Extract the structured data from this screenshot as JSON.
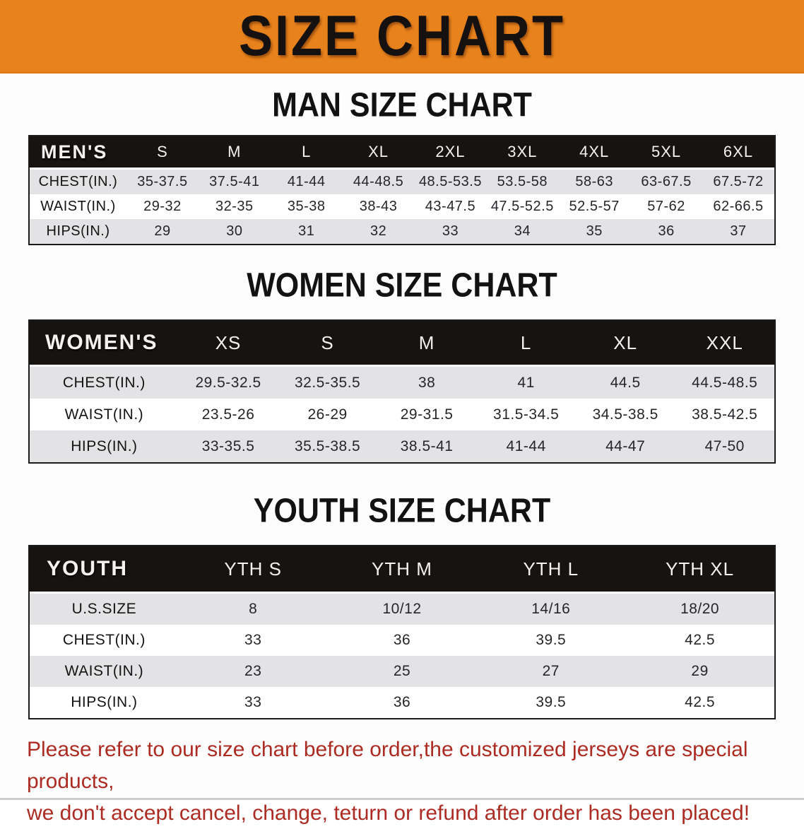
{
  "banner": {
    "title": "SIZE CHART",
    "background_color": "#E8821C",
    "text_color": "#141110"
  },
  "sections": [
    {
      "key": "mens",
      "title": "MAN SIZE CHART",
      "header_label": "MEN'S",
      "columns": [
        "S",
        "M",
        "L",
        "XL",
        "2XL",
        "3XL",
        "4XL",
        "5XL",
        "6XL"
      ],
      "rows": [
        {
          "label": "CHEST(IN.)",
          "values": [
            "35-37.5",
            "37.5-41",
            "41-44",
            "44-48.5",
            "48.5-53.5",
            "53.5-58",
            "58-63",
            "63-67.5",
            "67.5-72"
          ]
        },
        {
          "label": "WAIST(IN.)",
          "values": [
            "29-32",
            "32-35",
            "35-38",
            "38-43",
            "43-47.5",
            "47.5-52.5",
            "52.5-57",
            "57-62",
            "62-66.5"
          ]
        },
        {
          "label": "HIPS(IN.)",
          "values": [
            "29",
            "30",
            "31",
            "32",
            "33",
            "34",
            "35",
            "36",
            "37"
          ]
        }
      ]
    },
    {
      "key": "womens",
      "title": "WOMEN SIZE CHART",
      "header_label": "WOMEN'S",
      "columns": [
        "XS",
        "S",
        "M",
        "L",
        "XL",
        "XXL"
      ],
      "rows": [
        {
          "label": "CHEST(IN.)",
          "values": [
            "29.5-32.5",
            "32.5-35.5",
            "38",
            "41",
            "44.5",
            "44.5-48.5"
          ]
        },
        {
          "label": "WAIST(IN.)",
          "values": [
            "23.5-26",
            "26-29",
            "29-31.5",
            "31.5-34.5",
            "34.5-38.5",
            "38.5-42.5"
          ]
        },
        {
          "label": "HIPS(IN.)",
          "values": [
            "33-35.5",
            "35.5-38.5",
            "38.5-41",
            "41-44",
            "44-47",
            "47-50"
          ]
        }
      ]
    },
    {
      "key": "youth",
      "title": "YOUTH SIZE CHART",
      "header_label": "YOUTH",
      "columns": [
        "YTH S",
        "YTH M",
        "YTH L",
        "YTH XL"
      ],
      "rows": [
        {
          "label": "U.S.SIZE",
          "values": [
            "8",
            "10/12",
            "14/16",
            "18/20"
          ]
        },
        {
          "label": "CHEST(IN.)",
          "values": [
            "33",
            "36",
            "39.5",
            "42.5"
          ]
        },
        {
          "label": "WAIST(IN.)",
          "values": [
            "23",
            "25",
            "27",
            "29"
          ]
        },
        {
          "label": "HIPS(IN.)",
          "values": [
            "33",
            "36",
            "39.5",
            "42.5"
          ]
        }
      ]
    }
  ],
  "table_style": {
    "header_background": "#171310",
    "stripe_row_color": "#E3E3E5"
  },
  "footer": {
    "line1": "Please refer to our size chart before order,the customized jerseys are special products,",
    "line2": "we don't accept cancel, change, teturn or refund after order has been placed!",
    "text_color": "#AC2B22"
  }
}
